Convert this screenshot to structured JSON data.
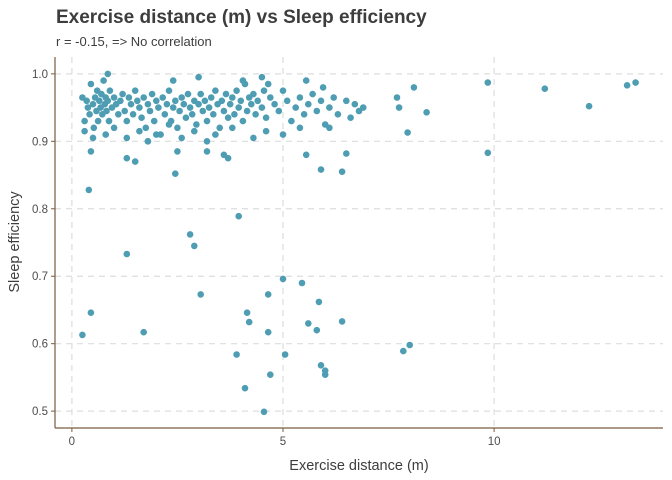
{
  "chart_data": {
    "type": "scatter",
    "title": "Exercise distance (m) vs Sleep efficiency",
    "subtitle": "r = -0.15, => No correlation",
    "xlabel": "Exercise distance (m)",
    "ylabel": "Sleep efficiency",
    "xlim": [
      -0.4,
      14.0
    ],
    "ylim": [
      0.475,
      1.025
    ],
    "xticks": [
      0,
      5,
      10
    ],
    "xtick_labels": [
      "0",
      "5",
      "10"
    ],
    "yticks": [
      0.5,
      0.6,
      0.7,
      0.8,
      0.9,
      1.0
    ],
    "ytick_labels": [
      "0.5",
      "0.6",
      "0.7",
      "0.8",
      "0.9",
      "1.0"
    ],
    "grid": true,
    "point_color": "#4e9db3",
    "points": [
      [
        0.25,
        0.965
      ],
      [
        0.3,
        0.93
      ],
      [
        0.35,
        0.96
      ],
      [
        0.38,
        0.95
      ],
      [
        0.42,
        0.94
      ],
      [
        0.45,
        0.985
      ],
      [
        0.5,
        0.955
      ],
      [
        0.52,
        0.92
      ],
      [
        0.55,
        0.965
      ],
      [
        0.58,
        0.945
      ],
      [
        0.6,
        0.975
      ],
      [
        0.62,
        0.93
      ],
      [
        0.65,
        0.96
      ],
      [
        0.68,
        0.95
      ],
      [
        0.7,
        0.97
      ],
      [
        0.72,
        0.94
      ],
      [
        0.75,
        0.99
      ],
      [
        0.78,
        0.955
      ],
      [
        0.8,
        0.965
      ],
      [
        0.82,
        0.945
      ],
      [
        0.85,
        0.96
      ],
      [
        0.88,
        0.93
      ],
      [
        0.9,
        0.975
      ],
      [
        0.95,
        0.95
      ],
      [
        1.0,
        0.965
      ],
      [
        1.05,
        0.955
      ],
      [
        1.1,
        0.94
      ],
      [
        1.15,
        0.96
      ],
      [
        1.2,
        0.97
      ],
      [
        1.25,
        0.945
      ],
      [
        1.3,
        0.93
      ],
      [
        1.35,
        0.965
      ],
      [
        1.4,
        0.955
      ],
      [
        1.45,
        0.94
      ],
      [
        1.5,
        0.975
      ],
      [
        1.55,
        0.96
      ],
      [
        1.6,
        0.95
      ],
      [
        1.65,
        0.935
      ],
      [
        1.7,
        0.965
      ],
      [
        1.75,
        0.92
      ],
      [
        1.8,
        0.955
      ],
      [
        1.85,
        0.945
      ],
      [
        1.9,
        0.97
      ],
      [
        1.95,
        0.93
      ],
      [
        2.0,
        0.96
      ],
      [
        2.05,
        0.95
      ],
      [
        2.1,
        0.91
      ],
      [
        2.15,
        0.965
      ],
      [
        2.2,
        0.94
      ],
      [
        2.25,
        0.955
      ],
      [
        2.3,
        0.975
      ],
      [
        2.35,
        0.93
      ],
      [
        2.4,
        0.95
      ],
      [
        2.45,
        0.96
      ],
      [
        2.5,
        0.92
      ],
      [
        2.55,
        0.945
      ],
      [
        2.6,
        0.965
      ],
      [
        2.65,
        0.955
      ],
      [
        2.7,
        0.935
      ],
      [
        2.75,
        0.97
      ],
      [
        2.8,
        0.95
      ],
      [
        2.85,
        0.94
      ],
      [
        2.9,
        0.96
      ],
      [
        2.95,
        0.925
      ],
      [
        3.0,
        0.955
      ],
      [
        3.05,
        0.97
      ],
      [
        3.1,
        0.945
      ],
      [
        3.15,
        0.96
      ],
      [
        3.2,
        0.93
      ],
      [
        3.25,
        0.95
      ],
      [
        3.3,
        0.965
      ],
      [
        3.35,
        0.94
      ],
      [
        3.4,
        0.975
      ],
      [
        3.45,
        0.955
      ],
      [
        3.5,
        0.92
      ],
      [
        3.55,
        0.96
      ],
      [
        3.6,
        0.945
      ],
      [
        3.65,
        0.97
      ],
      [
        3.7,
        0.935
      ],
      [
        3.75,
        0.955
      ],
      [
        3.8,
        0.965
      ],
      [
        3.85,
        0.94
      ],
      [
        3.9,
        0.975
      ],
      [
        3.95,
        0.95
      ],
      [
        4.0,
        0.96
      ],
      [
        4.05,
        0.93
      ],
      [
        4.1,
        0.985
      ],
      [
        4.15,
        0.945
      ],
      [
        4.2,
        0.965
      ],
      [
        4.25,
        0.955
      ],
      [
        4.3,
        0.97
      ],
      [
        4.35,
        0.94
      ],
      [
        4.4,
        0.96
      ],
      [
        4.5,
        0.95
      ],
      [
        4.55,
        0.975
      ],
      [
        4.6,
        0.935
      ],
      [
        4.7,
        0.965
      ],
      [
        4.8,
        0.955
      ],
      [
        4.9,
        0.945
      ],
      [
        5.0,
        0.975
      ],
      [
        5.1,
        0.96
      ],
      [
        5.2,
        0.93
      ],
      [
        5.3,
        0.95
      ],
      [
        5.4,
        0.965
      ],
      [
        5.5,
        0.94
      ],
      [
        5.6,
        0.955
      ],
      [
        5.7,
        0.97
      ],
      [
        5.8,
        0.945
      ],
      [
        5.9,
        0.96
      ],
      [
        6.0,
        0.925
      ],
      [
        6.1,
        0.95
      ],
      [
        6.2,
        0.965
      ],
      [
        6.3,
        0.94
      ],
      [
        6.5,
        0.96
      ],
      [
        6.6,
        0.935
      ],
      [
        6.7,
        0.955
      ],
      [
        6.8,
        0.945
      ],
      [
        0.3,
        0.915
      ],
      [
        0.5,
        0.905
      ],
      [
        0.8,
        0.91
      ],
      [
        1.0,
        0.92
      ],
      [
        1.3,
        0.905
      ],
      [
        1.6,
        0.915
      ],
      [
        1.8,
        0.9
      ],
      [
        2.0,
        0.91
      ],
      [
        2.3,
        0.925
      ],
      [
        2.6,
        0.905
      ],
      [
        2.9,
        0.915
      ],
      [
        3.2,
        0.9
      ],
      [
        3.4,
        0.91
      ],
      [
        3.8,
        0.92
      ],
      [
        4.3,
        0.905
      ],
      [
        4.6,
        0.915
      ],
      [
        5.0,
        0.91
      ],
      [
        5.4,
        0.92
      ],
      [
        0.45,
        0.885
      ],
      [
        1.3,
        0.875
      ],
      [
        1.5,
        0.87
      ],
      [
        1.8,
        0.9
      ],
      [
        2.5,
        0.885
      ],
      [
        3.2,
        0.885
      ],
      [
        3.6,
        0.88
      ],
      [
        3.7,
        0.875
      ],
      [
        0.4,
        0.828
      ],
      [
        2.45,
        0.852
      ],
      [
        5.55,
        0.88
      ],
      [
        5.9,
        0.858
      ],
      [
        6.1,
        0.92
      ],
      [
        6.4,
        0.855
      ],
      [
        6.5,
        0.882
      ],
      [
        6.9,
        0.95
      ],
      [
        0.85,
        1.0
      ],
      [
        2.4,
        0.99
      ],
      [
        3.0,
        0.995
      ],
      [
        4.05,
        0.99
      ],
      [
        4.5,
        0.995
      ],
      [
        4.65,
        0.985
      ],
      [
        5.55,
        0.99
      ],
      [
        5.95,
        0.98
      ],
      [
        7.7,
        0.965
      ],
      [
        7.75,
        0.95
      ],
      [
        7.95,
        0.913
      ],
      [
        8.1,
        0.98
      ],
      [
        8.4,
        0.943
      ],
      [
        9.85,
        0.987
      ],
      [
        9.85,
        0.883
      ],
      [
        11.2,
        0.978
      ],
      [
        12.25,
        0.952
      ],
      [
        13.15,
        0.983
      ],
      [
        13.35,
        0.987
      ],
      [
        3.95,
        0.789
      ],
      [
        2.8,
        0.762
      ],
      [
        2.9,
        0.745
      ],
      [
        1.3,
        0.733
      ],
      [
        5.0,
        0.696
      ],
      [
        5.45,
        0.69
      ],
      [
        3.05,
        0.673
      ],
      [
        4.65,
        0.673
      ],
      [
        5.85,
        0.662
      ],
      [
        0.45,
        0.646
      ],
      [
        4.15,
        0.646
      ],
      [
        6.4,
        0.633
      ],
      [
        4.2,
        0.632
      ],
      [
        5.6,
        0.63
      ],
      [
        0.25,
        0.613
      ],
      [
        1.7,
        0.617
      ],
      [
        4.65,
        0.617
      ],
      [
        5.8,
        0.62
      ],
      [
        8.0,
        0.598
      ],
      [
        7.85,
        0.589
      ],
      [
        3.9,
        0.584
      ],
      [
        5.05,
        0.584
      ],
      [
        5.9,
        0.568
      ],
      [
        6.0,
        0.56
      ],
      [
        6.0,
        0.554
      ],
      [
        4.7,
        0.554
      ],
      [
        4.1,
        0.534
      ],
      [
        4.55,
        0.499
      ]
    ]
  }
}
